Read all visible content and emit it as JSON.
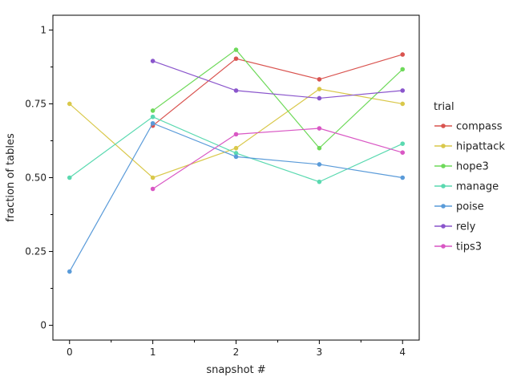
{
  "chart_data": {
    "type": "line",
    "xlabel": "snapshot #",
    "ylabel": "fraction of tables",
    "xlim": [
      -0.2,
      4.2
    ],
    "ylim": [
      -0.05,
      1.05
    ],
    "x_ticks": [
      0,
      1,
      2,
      3,
      4
    ],
    "y_ticks": [
      0,
      0.25,
      0.5,
      0.75,
      1
    ],
    "y_tick_labels": [
      "0",
      "0.25",
      "0.50",
      "0.75",
      "1"
    ],
    "y_minor_ticks": [
      0.125,
      0.375,
      0.625,
      0.875
    ],
    "x_minor_ticks": [
      0.5,
      1.5,
      2.5,
      3.5
    ],
    "grid": false,
    "legend": {
      "title": "trial",
      "placement": "right"
    },
    "series": [
      {
        "name": "compass",
        "color": "#d9534f",
        "x": [
          1,
          2,
          3,
          4
        ],
        "y": [
          0.676,
          0.903,
          0.833,
          0.917
        ]
      },
      {
        "name": "hipattack",
        "color": "#d9c84a",
        "x": [
          0,
          1,
          2,
          3,
          4
        ],
        "y": [
          0.75,
          0.5,
          0.6,
          0.8,
          0.75
        ]
      },
      {
        "name": "hope3",
        "color": "#6ed95a",
        "x": [
          1,
          2,
          3,
          4
        ],
        "y": [
          0.727,
          0.933,
          0.6,
          0.867
        ]
      },
      {
        "name": "manage",
        "color": "#5ad9b0",
        "x": [
          0,
          1,
          2,
          3,
          4
        ],
        "y": [
          0.5,
          0.706,
          0.583,
          0.486,
          0.615
        ]
      },
      {
        "name": "poise",
        "color": "#5a9bd9",
        "x": [
          0,
          1,
          2,
          3,
          4
        ],
        "y": [
          0.182,
          0.684,
          0.571,
          0.545,
          0.5
        ]
      },
      {
        "name": "rely",
        "color": "#8a55cc",
        "x": [
          1,
          2,
          3,
          4
        ],
        "y": [
          0.895,
          0.795,
          0.769,
          0.795
        ]
      },
      {
        "name": "tips3",
        "color": "#d957c4",
        "x": [
          1,
          2,
          3,
          4
        ],
        "y": [
          0.462,
          0.647,
          0.667,
          0.585
        ]
      }
    ]
  }
}
